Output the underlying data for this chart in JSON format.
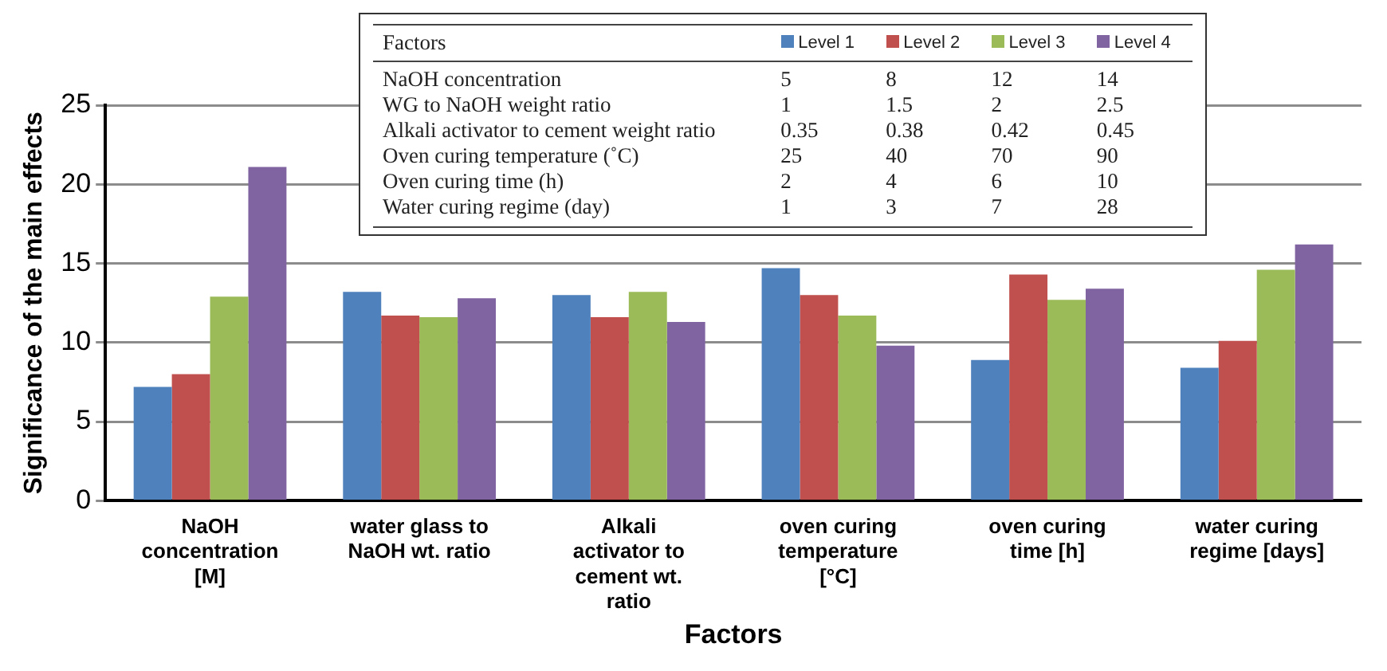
{
  "chart_data": {
    "type": "bar",
    "xlabel": "Factors",
    "ylabel": "Significance of the main effects",
    "categories": [
      "NaOH concentration [M]",
      "water glass to NaOH wt. ratio",
      "Alkali activator to cement wt. ratio",
      "oven curing temperature [°C]",
      "oven curing time [h]",
      "water curing regime [days]"
    ],
    "series": [
      {
        "name": "Level 1",
        "color": "#4f81bd",
        "values": [
          7.2,
          13.2,
          13.0,
          14.7,
          8.9,
          8.4
        ]
      },
      {
        "name": "Level 2",
        "color": "#c0504d",
        "values": [
          8.0,
          11.7,
          11.6,
          13.0,
          14.3,
          10.1
        ]
      },
      {
        "name": "Level 3",
        "color": "#9bbb59",
        "values": [
          12.9,
          11.6,
          13.2,
          11.7,
          12.7,
          14.6
        ]
      },
      {
        "name": "Level 4",
        "color": "#8064a2",
        "values": [
          21.1,
          12.8,
          11.3,
          9.8,
          13.4,
          16.2
        ]
      }
    ],
    "ylim": [
      0,
      25
    ],
    "yticks": [
      0,
      5,
      10,
      15,
      20,
      25
    ],
    "grid": "y",
    "legend": "top",
    "annotations": [
      "Factors",
      "NaOH concentration",
      "5",
      "8",
      "12",
      "14",
      "WG to NaOH weight ratio",
      "1",
      "1.5",
      "2",
      "2.5",
      "Alkali activator to cement weight ratio",
      "0.35",
      "0.38",
      "0.42",
      "0.45",
      "Oven curing temperature (˚C)",
      "25",
      "40",
      "70",
      "90",
      "Oven curing time (h)",
      "2",
      "4",
      "6",
      "10",
      "Water curing regime (day)",
      "1",
      "3",
      "7",
      "28"
    ]
  }
}
